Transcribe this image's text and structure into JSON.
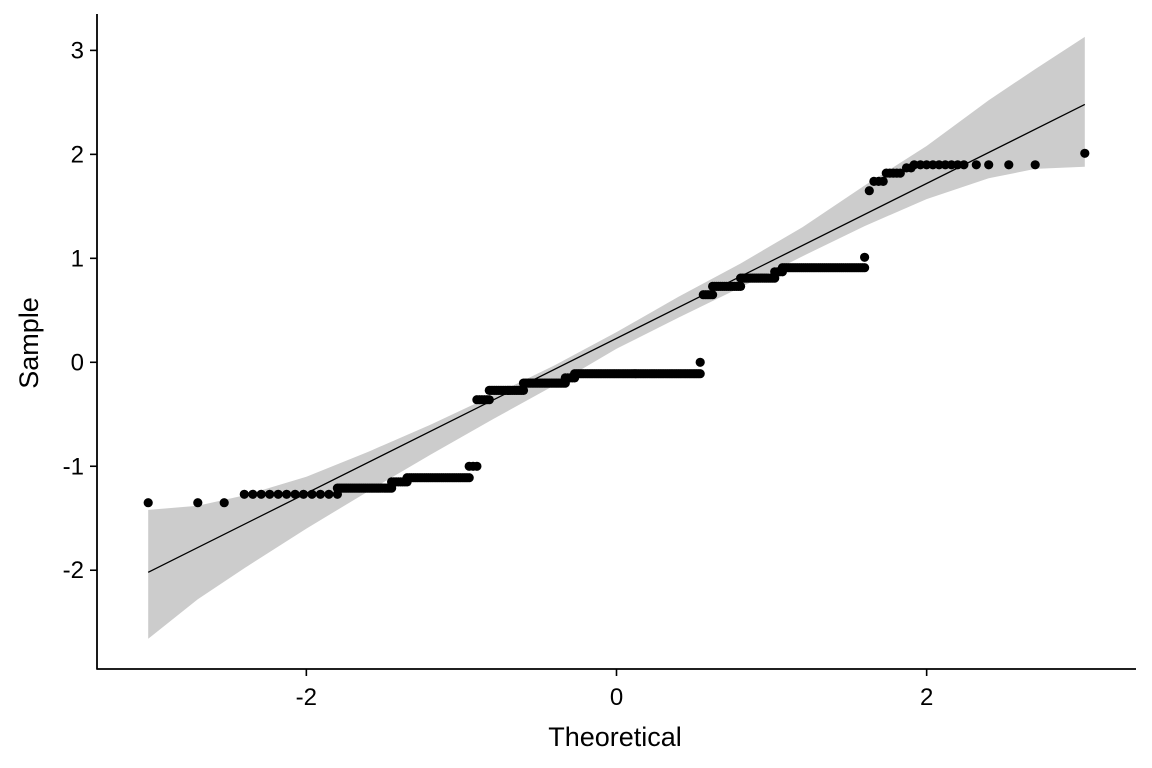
{
  "chart_data": {
    "type": "scatter",
    "subtype": "qq-plot",
    "title": "",
    "xlabel": "Theoretical",
    "ylabel": "Sample",
    "xlim": [
      -3.35,
      3.35
    ],
    "ylim": [
      -2.95,
      3.35
    ],
    "x_ticks": [
      -2,
      0,
      2
    ],
    "y_ticks": [
      -2,
      -1,
      0,
      1,
      2,
      3
    ],
    "x_tick_labels": [
      "-2",
      "0",
      "2"
    ],
    "y_tick_labels": [
      "-2",
      "-1",
      "0",
      "1",
      "2",
      "3"
    ],
    "grid": false,
    "legend": "none",
    "colors": {
      "points": "#000000",
      "line": "#000000",
      "band": "#cccccc"
    },
    "reference_line": {
      "intercept": 0.23,
      "slope": 0.745,
      "x_range": [
        -3.02,
        3.02
      ]
    },
    "confidence_band": [
      {
        "x": -3.02,
        "lower": -2.66,
        "upper": -1.42
      },
      {
        "x": -2.7,
        "lower": -2.28,
        "upper": -1.38
      },
      {
        "x": -2.4,
        "lower": -1.98,
        "upper": -1.28
      },
      {
        "x": -2.0,
        "lower": -1.6,
        "upper": -1.1
      },
      {
        "x": -1.6,
        "lower": -1.24,
        "upper": -0.86
      },
      {
        "x": -1.2,
        "lower": -0.89,
        "upper": -0.6
      },
      {
        "x": -0.8,
        "lower": -0.55,
        "upper": -0.32
      },
      {
        "x": -0.4,
        "lower": -0.22,
        "upper": -0.03
      },
      {
        "x": 0.0,
        "lower": 0.13,
        "upper": 0.29
      },
      {
        "x": 0.4,
        "lower": 0.43,
        "upper": 0.63
      },
      {
        "x": 0.8,
        "lower": 0.72,
        "upper": 0.95
      },
      {
        "x": 1.2,
        "lower": 1.02,
        "upper": 1.3
      },
      {
        "x": 1.6,
        "lower": 1.31,
        "upper": 1.7
      },
      {
        "x": 2.0,
        "lower": 1.57,
        "upper": 2.08
      },
      {
        "x": 2.4,
        "lower": 1.77,
        "upper": 2.52
      },
      {
        "x": 2.7,
        "lower": 1.86,
        "upper": 2.82
      },
      {
        "x": 3.02,
        "lower": 1.88,
        "upper": 3.13
      }
    ],
    "point_runs": [
      {
        "x_start": -3.02,
        "x_end": -3.02,
        "y": -1.35,
        "n": 1
      },
      {
        "x_start": -2.7,
        "x_end": -2.7,
        "y": -1.35,
        "n": 1
      },
      {
        "x_start": -2.53,
        "x_end": -2.53,
        "y": -1.35,
        "n": 1
      },
      {
        "x_start": -2.4,
        "x_end": -1.8,
        "y": -1.27,
        "n": 12
      },
      {
        "x_start": -1.8,
        "x_end": -1.45,
        "y": -1.21,
        "n": 30
      },
      {
        "x_start": -1.45,
        "x_end": -1.35,
        "y": -1.15,
        "n": 8
      },
      {
        "x_start": -1.35,
        "x_end": -0.95,
        "y": -1.11,
        "n": 30
      },
      {
        "x_start": -0.95,
        "x_end": -0.9,
        "y": -1.0,
        "n": 3
      },
      {
        "x_start": -0.9,
        "x_end": -0.82,
        "y": -0.36,
        "n": 6
      },
      {
        "x_start": -0.82,
        "x_end": -0.6,
        "y": -0.27,
        "n": 20
      },
      {
        "x_start": -0.6,
        "x_end": -0.33,
        "y": -0.2,
        "n": 25
      },
      {
        "x_start": -0.33,
        "x_end": -0.27,
        "y": -0.15,
        "n": 5
      },
      {
        "x_start": -0.27,
        "x_end": 0.54,
        "y": -0.11,
        "n": 70
      },
      {
        "x_start": 0.54,
        "x_end": 0.54,
        "y": 0.0,
        "n": 1
      },
      {
        "x_start": 0.56,
        "x_end": 0.62,
        "y": 0.65,
        "n": 5
      },
      {
        "x_start": 0.62,
        "x_end": 0.8,
        "y": 0.73,
        "n": 15
      },
      {
        "x_start": 0.8,
        "x_end": 1.02,
        "y": 0.81,
        "n": 18
      },
      {
        "x_start": 1.02,
        "x_end": 1.07,
        "y": 0.87,
        "n": 4
      },
      {
        "x_start": 1.07,
        "x_end": 1.6,
        "y": 0.91,
        "n": 40
      },
      {
        "x_start": 1.6,
        "x_end": 1.6,
        "y": 1.01,
        "n": 1
      },
      {
        "x_start": 1.63,
        "x_end": 1.63,
        "y": 1.65,
        "n": 1
      },
      {
        "x_start": 1.66,
        "x_end": 1.72,
        "y": 1.74,
        "n": 3
      },
      {
        "x_start": 1.74,
        "x_end": 1.83,
        "y": 1.82,
        "n": 5
      },
      {
        "x_start": 1.87,
        "x_end": 1.9,
        "y": 1.87,
        "n": 2
      },
      {
        "x_start": 1.92,
        "x_end": 2.24,
        "y": 1.9,
        "n": 9
      },
      {
        "x_start": 2.32,
        "x_end": 2.32,
        "y": 1.9,
        "n": 1
      },
      {
        "x_start": 2.4,
        "x_end": 2.4,
        "y": 1.9,
        "n": 1
      },
      {
        "x_start": 2.53,
        "x_end": 2.53,
        "y": 1.9,
        "n": 1
      },
      {
        "x_start": 2.7,
        "x_end": 2.7,
        "y": 1.9,
        "n": 1
      },
      {
        "x_start": 3.02,
        "x_end": 3.02,
        "y": 2.01,
        "n": 1
      }
    ]
  }
}
